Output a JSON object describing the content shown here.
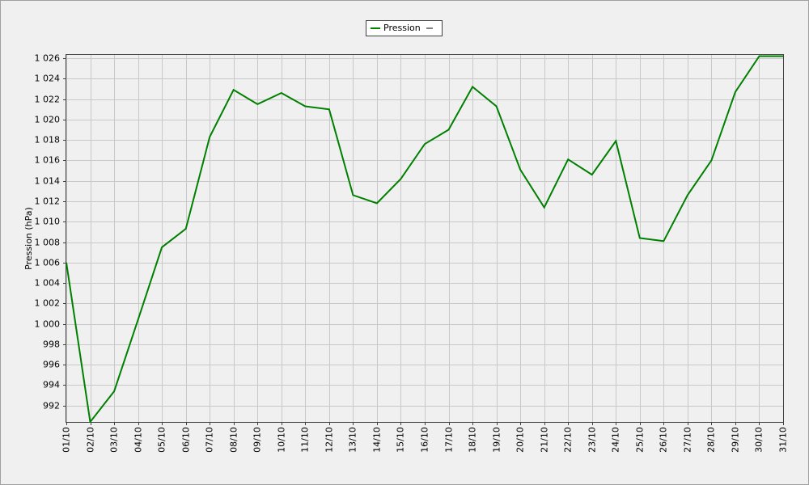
{
  "chart_data": {
    "type": "line",
    "y_label": "Pression (hPa)",
    "categories": [
      "01/10",
      "02/10",
      "03/10",
      "04/10",
      "05/10",
      "06/10",
      "07/10",
      "08/10",
      "09/10",
      "10/10",
      "11/10",
      "12/10",
      "13/10",
      "14/10",
      "15/10",
      "16/10",
      "17/10",
      "18/10",
      "19/10",
      "20/10",
      "21/10",
      "22/10",
      "23/10",
      "24/10",
      "25/10",
      "26/10",
      "27/10",
      "28/10",
      "29/10",
      "30/10",
      "31/10"
    ],
    "series": [
      {
        "name": "Pression",
        "color": "#008000",
        "values": [
          1006.0,
          990.4,
          993.4,
          1000.4,
          1007.5,
          1009.3,
          1018.3,
          1022.9,
          1021.5,
          1022.6,
          1021.3,
          1021.0,
          1012.6,
          1011.8,
          1014.2,
          1017.6,
          1019.0,
          1023.2,
          1021.3,
          1015.1,
          1011.4,
          1016.1,
          1014.6,
          1017.9,
          1008.4,
          1008.1,
          1012.6,
          1016.0,
          1022.7,
          1026.2,
          1026.2
        ]
      }
    ],
    "ylim": [
      990.4,
      1026.4
    ],
    "yticks": [
      992,
      994,
      996,
      998,
      {
        "value": 1000,
        "label": "1 000"
      },
      {
        "value": 1002,
        "label": "1 002"
      },
      {
        "value": 1004,
        "label": "1 004"
      },
      {
        "value": 1006,
        "label": "1 006"
      },
      {
        "value": 1008,
        "label": "1 008"
      },
      {
        "value": 1010,
        "label": "1 010"
      },
      {
        "value": 1012,
        "label": "1 012"
      },
      {
        "value": 1014,
        "label": "1 014"
      },
      {
        "value": 1016,
        "label": "1 016"
      },
      {
        "value": 1018,
        "label": "1 018"
      },
      {
        "value": 1020,
        "label": "1 020"
      },
      {
        "value": 1022,
        "label": "1 022"
      },
      {
        "value": 1024,
        "label": "1 024"
      },
      {
        "value": 1026,
        "label": "1 026"
      }
    ],
    "grid": true,
    "legend": "top"
  }
}
